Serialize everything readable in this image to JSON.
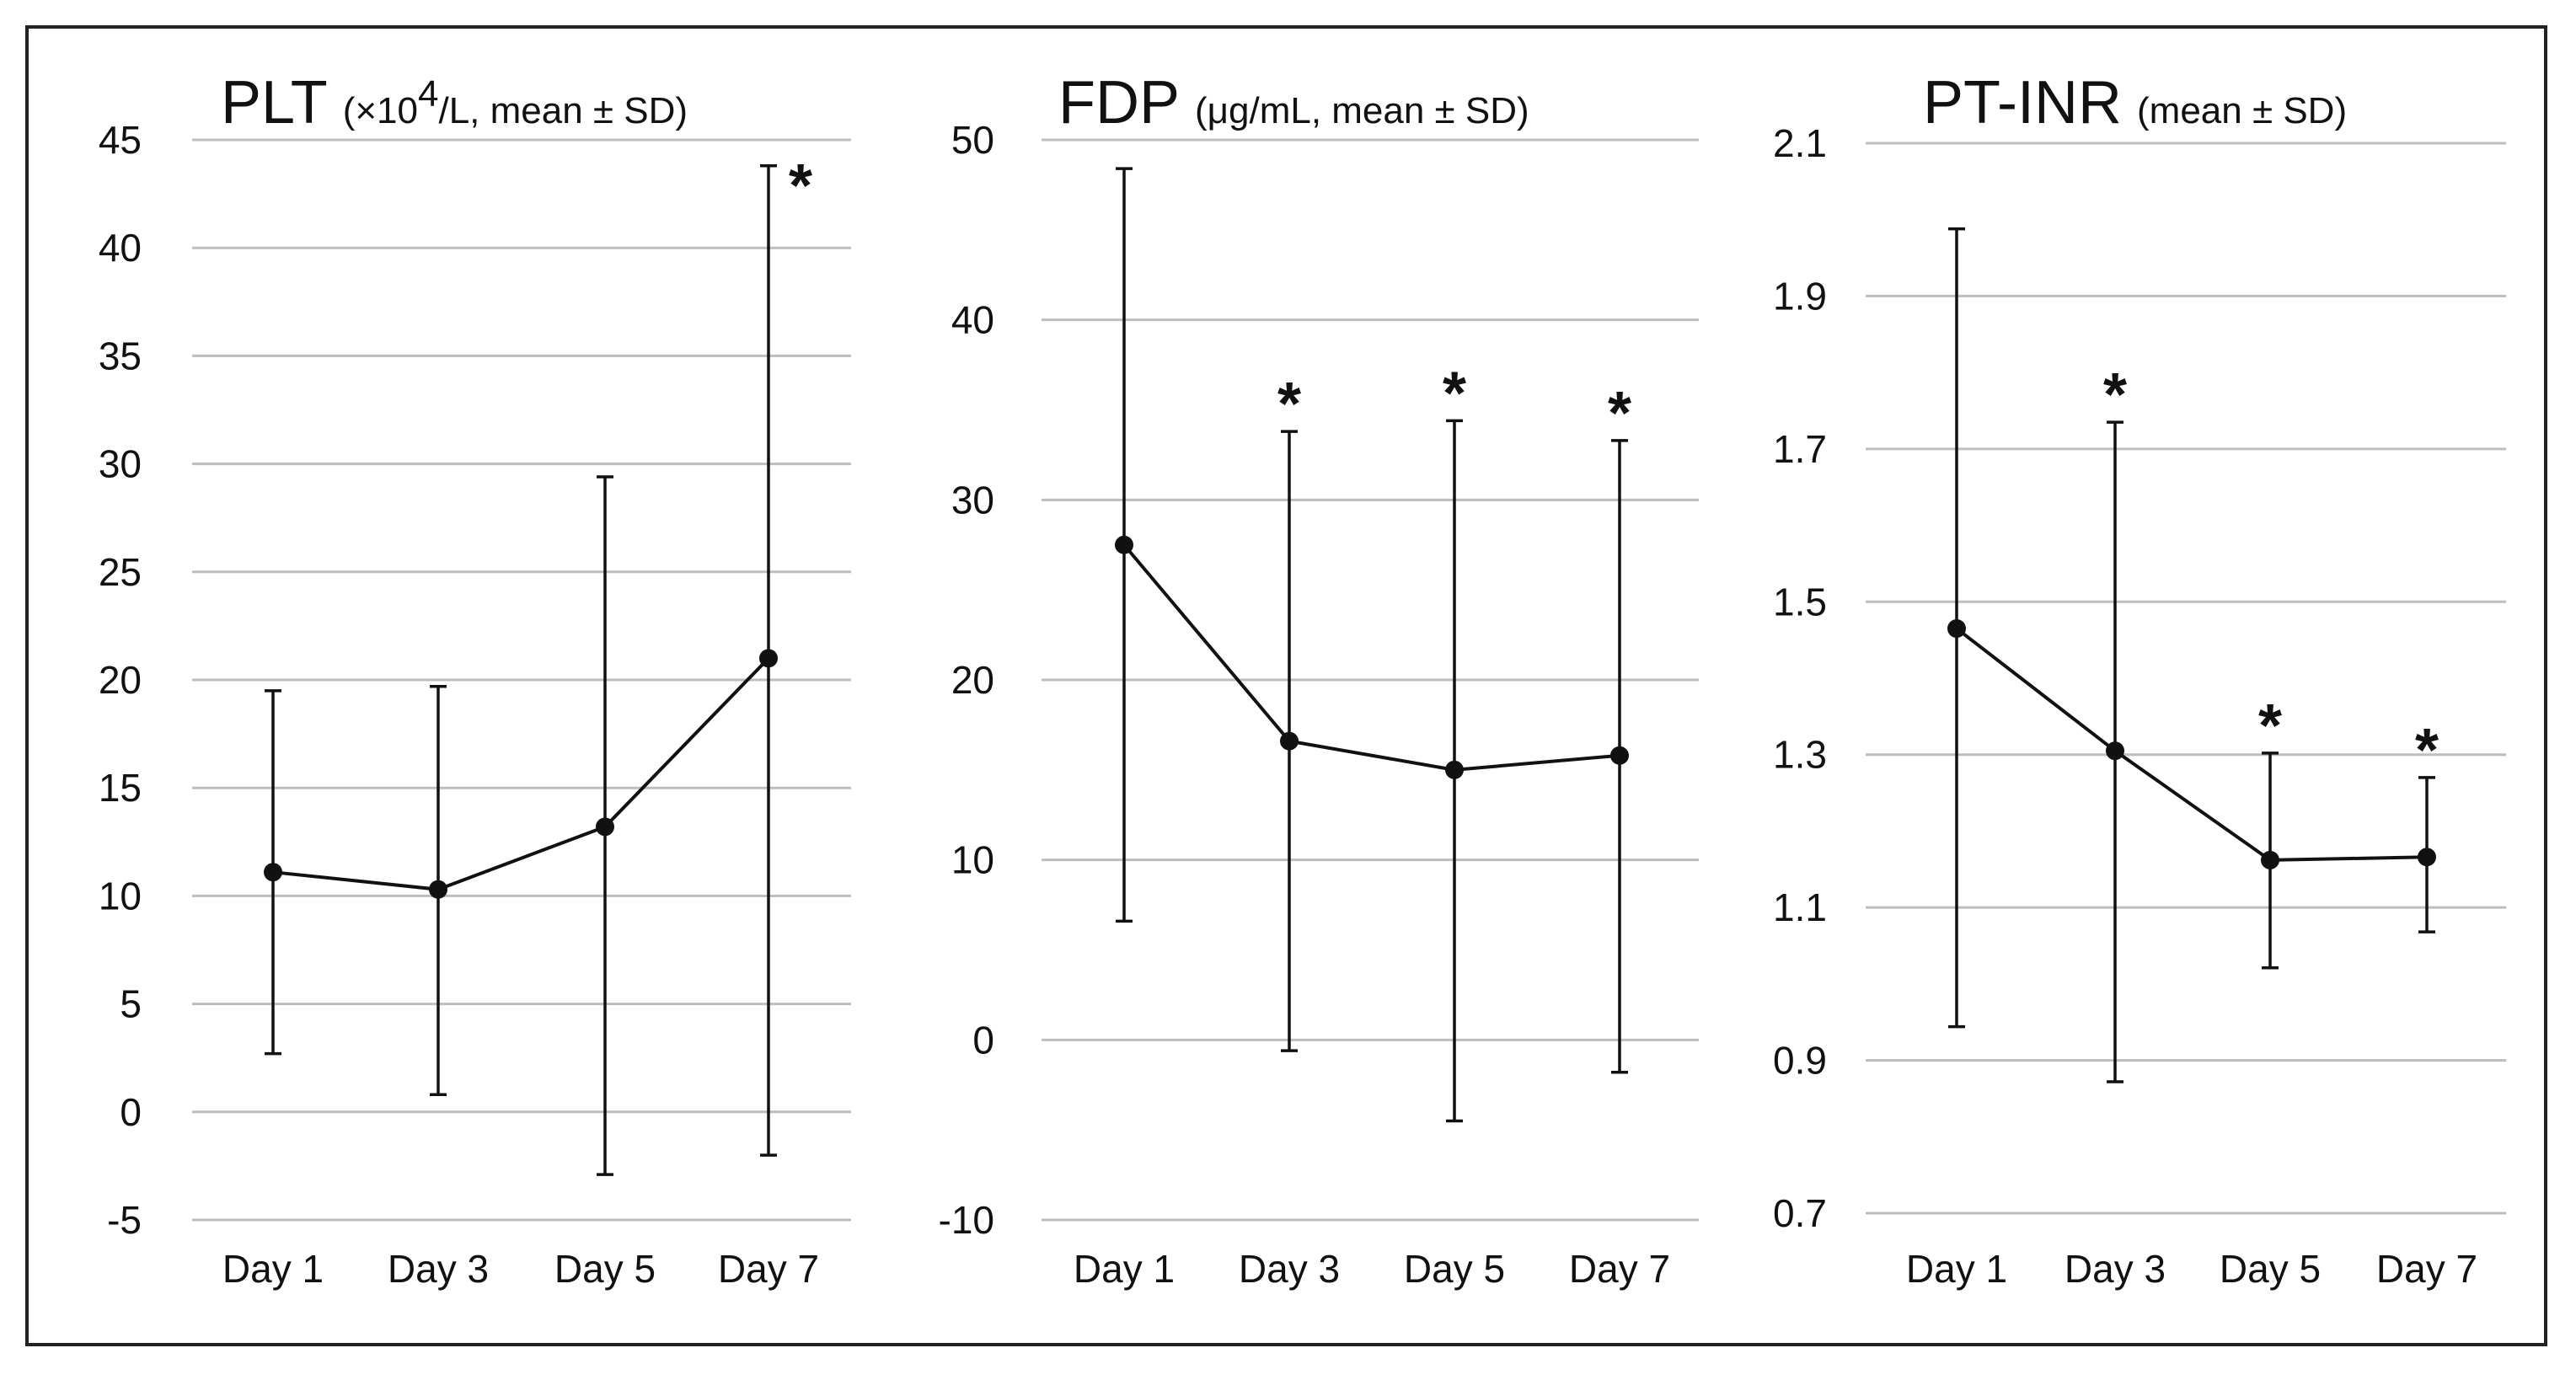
{
  "chart_data": [
    {
      "type": "line",
      "title": "PLT",
      "subtitle_pre": "(×10",
      "subtitle_sup": "4",
      "subtitle_post": "/L, mean ± SD)",
      "categories": [
        "Day 1",
        "Day 3",
        "Day 5",
        "Day 7"
      ],
      "values": [
        11.1,
        10.3,
        13.2,
        21.0
      ],
      "sd_upper": [
        19.5,
        19.7,
        29.4,
        43.8
      ],
      "sd_lower": [
        2.7,
        0.8,
        -2.9,
        -2.0
      ],
      "significant": [
        false,
        false,
        false,
        true
      ],
      "significance_marker": "*",
      "yticks": [
        "45",
        "40",
        "35",
        "30",
        "25",
        "20",
        "15",
        "10",
        "5",
        "0",
        "-5"
      ],
      "ylim": [
        -5,
        45
      ],
      "grid": true
    },
    {
      "type": "line",
      "title": "FDP",
      "subtitle_pre": "(μg/mL, mean ± SD)",
      "subtitle_sup": "",
      "subtitle_post": "",
      "categories": [
        "Day 1",
        "Day 3",
        "Day 5",
        "Day 7"
      ],
      "values": [
        27.5,
        16.6,
        15.0,
        15.8
      ],
      "sd_upper": [
        48.4,
        33.8,
        34.4,
        33.3
      ],
      "sd_lower": [
        6.6,
        -0.6,
        -4.5,
        -1.8
      ],
      "significant": [
        false,
        true,
        true,
        true
      ],
      "significance_marker": "*",
      "yticks": [
        "50",
        "40",
        "30",
        "20",
        "10",
        "0",
        "-10"
      ],
      "ylim": [
        -10,
        50
      ],
      "grid": true
    },
    {
      "type": "line",
      "title": "PT-INR",
      "subtitle_pre": "(mean ± SD)",
      "subtitle_sup": "",
      "subtitle_post": "",
      "categories": [
        "Day 1",
        "Day 3",
        "Day 5",
        "Day 7"
      ],
      "values": [
        1.465,
        1.305,
        1.162,
        1.166
      ],
      "sd_upper": [
        1.988,
        1.735,
        1.302,
        1.27
      ],
      "sd_lower": [
        0.944,
        0.872,
        1.021,
        1.068
      ],
      "significant": [
        false,
        true,
        true,
        true
      ],
      "significance_marker": "*",
      "yticks": [
        "2.1",
        "1.9",
        "1.7",
        "1.5",
        "1.3",
        "1.1",
        "0.9",
        "0.7"
      ],
      "ylim": [
        0.7,
        2.1
      ],
      "grid": true
    }
  ]
}
